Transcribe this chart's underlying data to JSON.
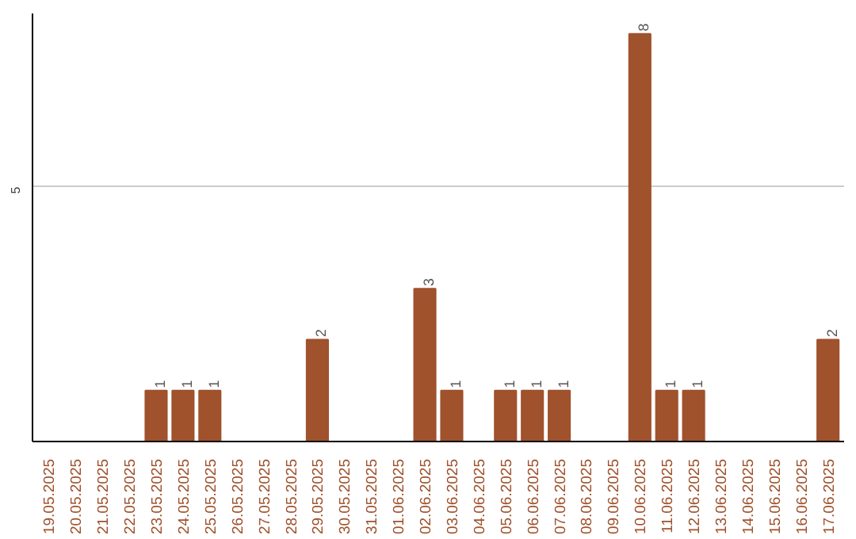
{
  "chart_data": {
    "type": "bar",
    "categories": [
      "19.05.2025",
      "20.05.2025",
      "21.05.2025",
      "22.05.2025",
      "23.05.2025",
      "24.05.2025",
      "25.05.2025",
      "26.05.2025",
      "27.05.2025",
      "28.05.2025",
      "29.05.2025",
      "30.05.2025",
      "31.05.2025",
      "01.06.2025",
      "02.06.2025",
      "03.06.2025",
      "04.06.2025",
      "05.06.2025",
      "06.06.2025",
      "07.06.2025",
      "08.06.2025",
      "09.06.2025",
      "10.06.2025",
      "11.06.2025",
      "12.06.2025",
      "13.06.2025",
      "14.06.2025",
      "15.06.2025",
      "16.06.2025",
      "17.06.2025"
    ],
    "values": [
      0,
      0,
      0,
      0,
      1,
      1,
      1,
      0,
      0,
      0,
      2,
      0,
      0,
      0,
      3,
      1,
      0,
      1,
      1,
      1,
      0,
      0,
      8,
      1,
      1,
      0,
      0,
      0,
      0,
      2
    ],
    "value_labels": [
      null,
      null,
      null,
      null,
      "1",
      "1",
      "1",
      null,
      null,
      null,
      "2",
      null,
      null,
      null,
      "3",
      "1",
      null,
      "1",
      "1",
      "1",
      null,
      null,
      "8",
      "1",
      "1",
      null,
      null,
      null,
      null,
      "2"
    ],
    "color": "#a0522d",
    "ylim": [
      0,
      8.4
    ],
    "yticks": [
      5
    ],
    "grid": "y"
  }
}
